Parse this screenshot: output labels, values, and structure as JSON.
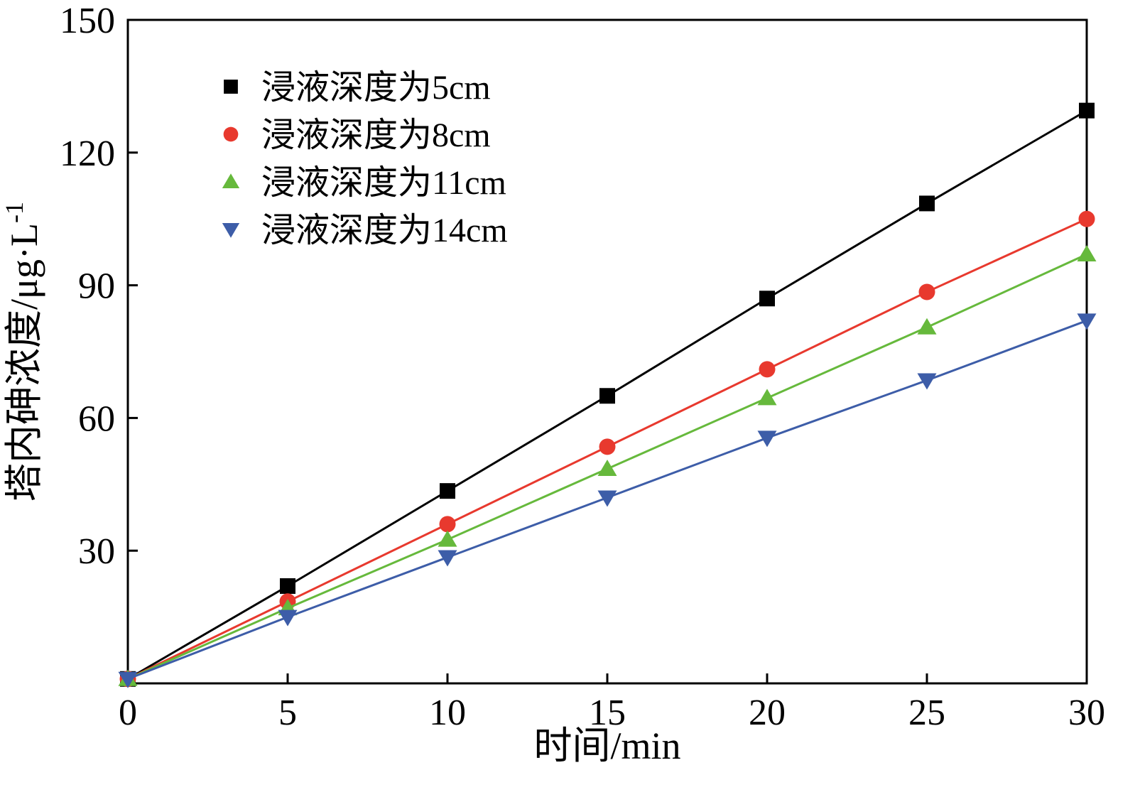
{
  "chart_data": {
    "type": "line",
    "title": "",
    "xlabel": "时间/min",
    "ylabel_main": "塔内砷浓度/μg·L",
    "ylabel_sup": "-1",
    "xlim": [
      0,
      30
    ],
    "ylim": [
      0,
      150
    ],
    "xticks": [
      0,
      5,
      10,
      15,
      20,
      25,
      30
    ],
    "yticks": [
      30,
      60,
      90,
      120,
      150
    ],
    "grid": false,
    "legend_position": "top-left",
    "x": [
      0,
      5,
      10,
      15,
      20,
      25,
      30
    ],
    "series": [
      {
        "name": "浸液深度为5cm",
        "marker": "square",
        "color": "#000000",
        "values": [
          1,
          22,
          43.5,
          65,
          87,
          108.5,
          129.5
        ]
      },
      {
        "name": "浸液深度为8cm",
        "marker": "circle",
        "color": "#e8392e",
        "values": [
          1,
          18.5,
          36,
          53.5,
          71,
          88.5,
          105
        ]
      },
      {
        "name": "浸液深度为11cm",
        "marker": "triangle-up",
        "color": "#66b93c",
        "values": [
          1,
          17,
          32.5,
          48.5,
          64.5,
          80.5,
          97
        ]
      },
      {
        "name": "浸液深度为14cm",
        "marker": "triangle-down",
        "color": "#3d5da8",
        "values": [
          1,
          15,
          28.5,
          42,
          55.5,
          68.5,
          82
        ]
      }
    ]
  }
}
